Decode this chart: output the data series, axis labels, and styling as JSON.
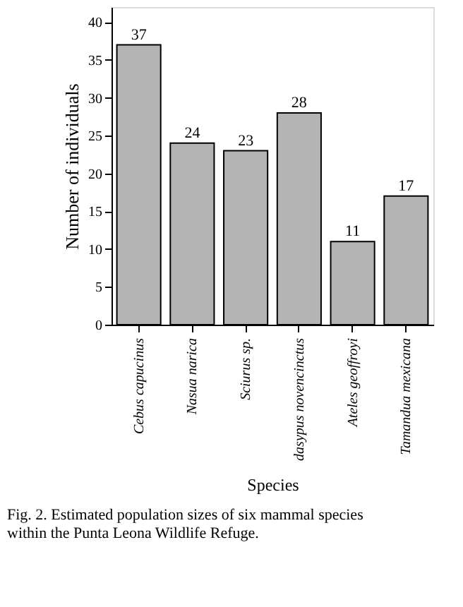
{
  "chart_data": {
    "type": "bar",
    "categories": [
      "Cebus capucinus",
      "Nasua narica",
      "Sciurus sp.",
      "dasypus novencinctus",
      "Ateles geoffroyi",
      "Tamandua mexicana"
    ],
    "values": [
      37,
      24,
      23,
      28,
      11,
      17
    ],
    "color": "#b4b4b4",
    "xlabel": "Species",
    "ylabel": "Number of individuals",
    "ylim": [
      0,
      42
    ],
    "yticks": [
      0,
      5,
      10,
      15,
      20,
      25,
      30,
      35,
      40
    ],
    "data_labels": true,
    "grid": false,
    "annotations": [
      "Fig. 2. Estimated population sizes of six mammal species within the Punta Leona Wildlife Refuge."
    ]
  }
}
